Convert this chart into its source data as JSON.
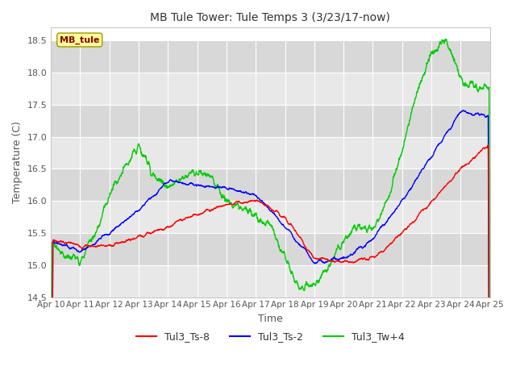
{
  "title": "MB Tule Tower: Tule Temps 3 (3/23/17-now)",
  "xlabel": "Time",
  "ylabel": "Temperature (C)",
  "ylim": [
    14.5,
    18.7
  ],
  "yticks": [
    14.5,
    15.0,
    15.5,
    16.0,
    16.5,
    17.0,
    17.5,
    18.0,
    18.5
  ],
  "xtick_labels": [
    "Apr 10",
    "Apr 11",
    "Apr 12",
    "Apr 13",
    "Apr 14",
    "Apr 15",
    "Apr 16",
    "Apr 17",
    "Apr 18",
    "Apr 19",
    "Apr 20",
    "Apr 21",
    "Apr 22",
    "Apr 23",
    "Apr 24",
    "Apr 25"
  ],
  "legend_label": "MB_tule",
  "legend_box_color": "#ffff99",
  "legend_text_color": "#8b0000",
  "series_labels": [
    "Tul3_Ts-8",
    "Tul3_Ts-2",
    "Tul3_Tw+4"
  ],
  "series_colors": [
    "#ff0000",
    "#0000ff",
    "#00cc00"
  ],
  "bg_color_light": "#e8e8e8",
  "bg_color_dark": "#d8d8d8",
  "grid_color": "#ffffff",
  "title_color": "#333333",
  "tick_color": "#555555"
}
